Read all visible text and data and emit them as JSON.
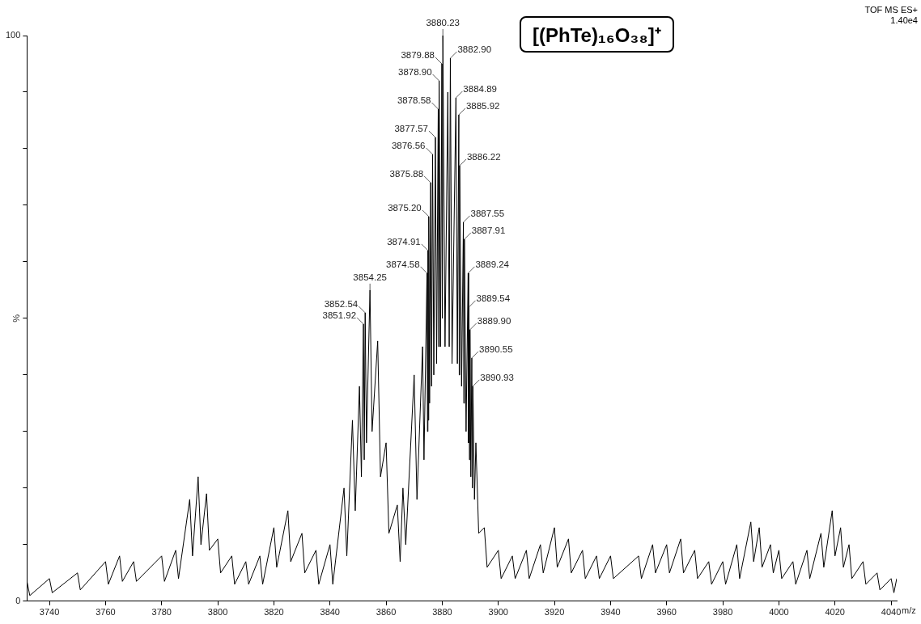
{
  "chart_data": {
    "type": "line",
    "title": "[(PhTe)₁₆O₃₈]⁺",
    "xlabel": "m/z",
    "ylabel": "%",
    "annotations": [
      "TOF MS ES+",
      "1.40e4",
      {
        "text": "3880.23",
        "x": 3880.23,
        "y": 100
      },
      {
        "text": "3882.90",
        "x": 3882.9,
        "y": 96
      },
      {
        "text": "3879.88",
        "x": 3879.88,
        "y": 95
      },
      {
        "text": "3878.90",
        "x": 3878.9,
        "y": 92
      },
      {
        "text": "3884.89",
        "x": 3884.89,
        "y": 89
      },
      {
        "text": "3885.92",
        "x": 3885.92,
        "y": 86
      },
      {
        "text": "3878.58",
        "x": 3878.58,
        "y": 87
      },
      {
        "text": "3877.57",
        "x": 3877.57,
        "y": 82
      },
      {
        "text": "3876.56",
        "x": 3876.56,
        "y": 79
      },
      {
        "text": "3886.22",
        "x": 3886.22,
        "y": 77
      },
      {
        "text": "3875.88",
        "x": 3875.88,
        "y": 74
      },
      {
        "text": "3875.20",
        "x": 3875.2,
        "y": 68
      },
      {
        "text": "3887.55",
        "x": 3887.55,
        "y": 67
      },
      {
        "text": "3887.91",
        "x": 3887.91,
        "y": 64
      },
      {
        "text": "3874.91",
        "x": 3874.91,
        "y": 62
      },
      {
        "text": "3874.58",
        "x": 3874.58,
        "y": 58
      },
      {
        "text": "3889.24",
        "x": 3889.24,
        "y": 58
      },
      {
        "text": "3854.25",
        "x": 3854.25,
        "y": 55
      },
      {
        "text": "3852.54",
        "x": 3852.54,
        "y": 51
      },
      {
        "text": "3851.92",
        "x": 3851.92,
        "y": 49
      },
      {
        "text": "3889.54",
        "x": 3889.54,
        "y": 52
      },
      {
        "text": "3889.90",
        "x": 3889.9,
        "y": 48
      },
      {
        "text": "3890.55",
        "x": 3890.55,
        "y": 43
      },
      {
        "text": "3890.93",
        "x": 3890.93,
        "y": 38
      }
    ],
    "series": [
      {
        "color": "#000000",
        "x": [
          3732,
          3733,
          3740,
          3741,
          3750,
          3751,
          3760,
          3761,
          3765,
          3766,
          3770,
          3771,
          3780,
          3781,
          3785,
          3786,
          3790,
          3791,
          3793,
          3794,
          3796,
          3797,
          3800,
          3801,
          3805,
          3806,
          3810,
          3811,
          3815,
          3816,
          3820,
          3821,
          3825,
          3826,
          3830,
          3831,
          3835,
          3836,
          3840,
          3841,
          3845,
          3846,
          3848,
          3849,
          3850.5,
          3851.2,
          3851.92,
          3852.2,
          3852.54,
          3853,
          3854.25,
          3855,
          3857,
          3858,
          3860,
          3861,
          3864,
          3865,
          3866,
          3867,
          3870,
          3871,
          3873,
          3873.5,
          3874.58,
          3874.75,
          3874.91,
          3875.05,
          3875.2,
          3875.5,
          3875.88,
          3876.2,
          3876.56,
          3877,
          3877.57,
          3878,
          3878.58,
          3878.75,
          3878.9,
          3879.4,
          3879.88,
          3880.05,
          3880.23,
          3881,
          3882,
          3882.5,
          3882.9,
          3883.5,
          3884.89,
          3885.4,
          3885.92,
          3886.07,
          3886.22,
          3886.9,
          3887.55,
          3887.7,
          3887.91,
          3888.5,
          3889.24,
          3889.4,
          3889.54,
          3889.7,
          3889.9,
          3890.2,
          3890.55,
          3890.75,
          3890.93,
          3891.5,
          3892,
          3893,
          3895,
          3896,
          3900,
          3901,
          3905,
          3906,
          3910,
          3911,
          3915,
          3916,
          3920,
          3921,
          3925,
          3926,
          3930,
          3931,
          3935,
          3936,
          3940,
          3941,
          3950,
          3951,
          3955,
          3956,
          3960,
          3961,
          3965,
          3966,
          3970,
          3971,
          3975,
          3976,
          3980,
          3981,
          3985,
          3986,
          3990,
          3991,
          3993,
          3994,
          3997,
          3998,
          4000,
          4001,
          4005,
          4006,
          4010,
          4011,
          4015,
          4016,
          4019,
          4020,
          4022,
          4023,
          4025,
          4026,
          4030,
          4031,
          4035,
          4036,
          4040,
          4041,
          4042
        ],
        "values": [
          3.5,
          1,
          4,
          1.5,
          5,
          2,
          7,
          3,
          8,
          3.5,
          7,
          3.5,
          8,
          3.5,
          9,
          4,
          18,
          8,
          22,
          10,
          19,
          9,
          11,
          5,
          8,
          3,
          7,
          3,
          8,
          3,
          13,
          6,
          16,
          7,
          12,
          5,
          9,
          3,
          10,
          3,
          20,
          8,
          32,
          16,
          38,
          22,
          49,
          25,
          51,
          28,
          55,
          30,
          46,
          22,
          28,
          12,
          17,
          7,
          20,
          10,
          40,
          18,
          45,
          25,
          58,
          30,
          62,
          32,
          68,
          35,
          74,
          38,
          79,
          40,
          82,
          42,
          87,
          45,
          92,
          45,
          95,
          50,
          100,
          45,
          90,
          45,
          96,
          42,
          89,
          42,
          86,
          40,
          77,
          38,
          67,
          35,
          64,
          30,
          58,
          28,
          52,
          25,
          48,
          22,
          43,
          20,
          38,
          18,
          28,
          12,
          13,
          6,
          9,
          4,
          8,
          4,
          9,
          4,
          10,
          5,
          13,
          6,
          11,
          5,
          9,
          4,
          8,
          4,
          8,
          4,
          8,
          4,
          10,
          5,
          10,
          5,
          11,
          5,
          9,
          4,
          7,
          3,
          7,
          3,
          10,
          4,
          14,
          7,
          13,
          6,
          10,
          5,
          9,
          4,
          7,
          3,
          9,
          4,
          12,
          6,
          16,
          8,
          13,
          6,
          10,
          4,
          7,
          3,
          5,
          2,
          4,
          1.5,
          4
        ]
      }
    ],
    "xlim": [
      3732,
      4042
    ],
    "xticks": [
      3740,
      3760,
      3780,
      3800,
      3820,
      3840,
      3860,
      3880,
      3900,
      3920,
      3940,
      3960,
      3980,
      4000,
      4020,
      4040
    ],
    "ylim": [
      0,
      100
    ],
    "yticks": [
      0,
      {
        "value": 10,
        "label": null
      },
      {
        "value": 20,
        "label": null
      },
      {
        "value": 30,
        "label": null
      },
      {
        "value": 40,
        "label": null
      },
      {
        "value": 50,
        "label": null
      },
      {
        "value": 60,
        "label": null
      },
      {
        "value": 70,
        "label": null
      },
      {
        "value": 80,
        "label": null
      },
      {
        "value": 90,
        "label": null
      },
      100
    ],
    "legend": false,
    "grid": false,
    "marker": "none",
    "line_style": "solid"
  }
}
